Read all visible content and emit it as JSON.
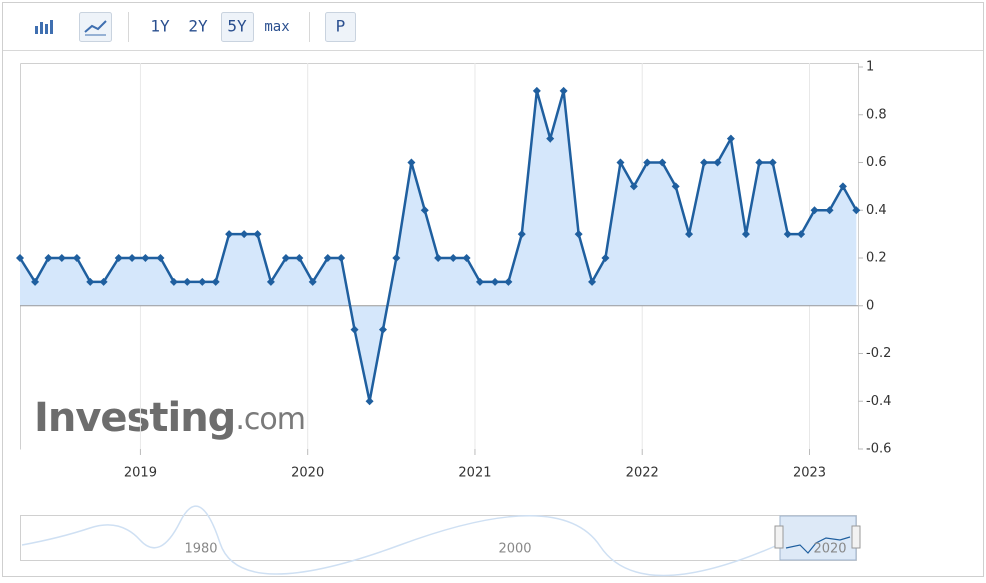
{
  "toolbar": {
    "ranges": [
      "1Y",
      "2Y",
      "5Y",
      "max"
    ],
    "p": "P"
  },
  "watermark": {
    "brand": "Investing",
    "suffix": ".com"
  },
  "navigator": {
    "labels": [
      "1980",
      "2000",
      "2020"
    ]
  },
  "chart_data": {
    "type": "line",
    "color": "#1f5f9f",
    "fill": "#d5e7fb",
    "xgrid": true,
    "x": [
      2018.28,
      2018.37,
      2018.45,
      2018.53,
      2018.62,
      2018.7,
      2018.78,
      2018.87,
      2018.95,
      2019.03,
      2019.12,
      2019.2,
      2019.28,
      2019.37,
      2019.45,
      2019.53,
      2019.62,
      2019.7,
      2019.78,
      2019.87,
      2019.95,
      2020.03,
      2020.12,
      2020.2,
      2020.28,
      2020.37,
      2020.45,
      2020.53,
      2020.62,
      2020.7,
      2020.78,
      2020.87,
      2020.95,
      2021.03,
      2021.12,
      2021.2,
      2021.28,
      2021.37,
      2021.45,
      2021.53,
      2021.62,
      2021.7,
      2021.78,
      2021.87,
      2021.95,
      2022.03,
      2022.12,
      2022.2,
      2022.28,
      2022.37,
      2022.45,
      2022.53,
      2022.62,
      2022.7,
      2022.78,
      2022.87,
      2022.95,
      2023.03,
      2023.12,
      2023.2,
      2023.28
    ],
    "values": [
      0.2,
      0.1,
      0.2,
      0.2,
      0.2,
      0.1,
      0.1,
      0.2,
      0.2,
      0.2,
      0.2,
      0.1,
      0.1,
      0.1,
      0.1,
      0.3,
      0.3,
      0.3,
      0.1,
      0.2,
      0.2,
      0.1,
      0.2,
      0.2,
      -0.1,
      -0.4,
      -0.1,
      0.2,
      0.6,
      0.4,
      0.2,
      0.2,
      0.2,
      0.1,
      0.1,
      0.1,
      0.3,
      0.9,
      0.7,
      0.9,
      0.3,
      0.1,
      0.2,
      0.6,
      0.5,
      0.6,
      0.6,
      0.5,
      0.3,
      0.6,
      0.6,
      0.7,
      0.3,
      0.6,
      0.6,
      0.3,
      0.3,
      0.4,
      0.4,
      0.5,
      0.4
    ],
    "xlim": [
      2018.28,
      2023.29
    ],
    "xticks": [
      2019,
      2020,
      2021,
      2022,
      2023
    ],
    "ylim": [
      -0.6,
      1
    ],
    "yticks": [
      -0.6,
      -0.4,
      -0.2,
      0,
      0.2,
      0.4,
      0.6,
      0.8,
      1
    ]
  }
}
